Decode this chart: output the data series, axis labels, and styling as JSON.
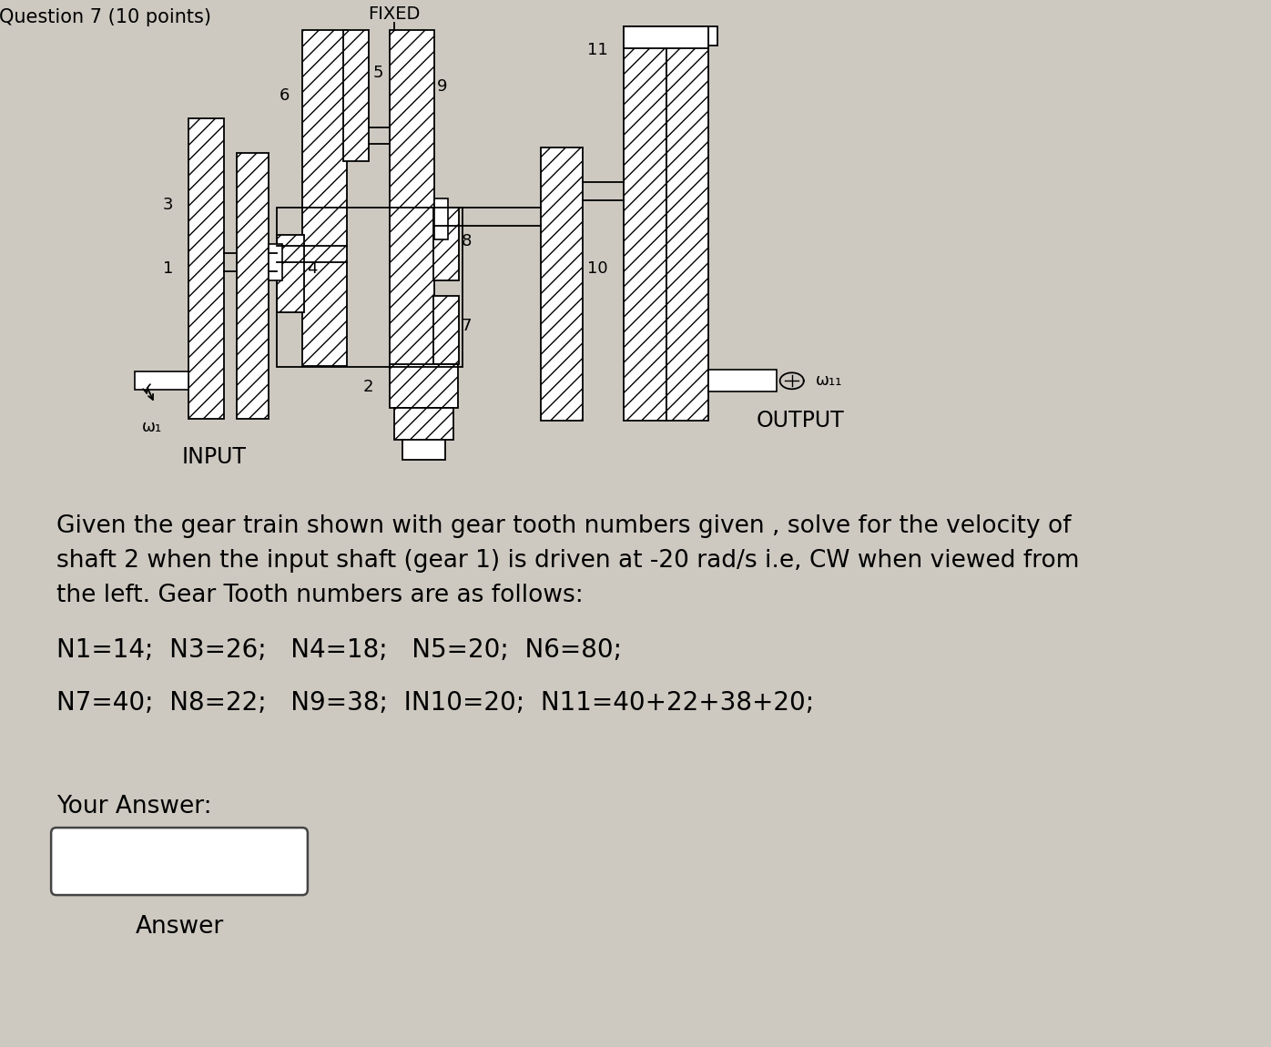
{
  "bg_color": "#cdc9c1",
  "title_text": "Question 7 (10 points)",
  "problem_text_line1": "Given the gear train shown with gear tooth numbers given , solve for the velocity of",
  "problem_text_line2": "shaft 2 when the input shaft (gear 1) is driven at -20 rad/s i.e, CW when viewed from",
  "problem_text_line3": "the left. Gear Tooth numbers are as follows:",
  "gear_line1": "N1=14;  N3=26;   N4=18;   N5=20;  N6=80;",
  "gear_line2": "N7=40;  N8=22;   N9=38;  ΙN10=20;  N11=40+22+38+20;",
  "answer_label": "Your Answer:",
  "answer_box_label": "Answer",
  "diagram_fixed": "FIXED",
  "label_input": "INPUT",
  "label_output": "OUTPUT",
  "omega_in": "ω₁",
  "omega_out": "ω₁₁",
  "font_size_body": 19,
  "font_size_gear": 20,
  "font_size_label": 17
}
